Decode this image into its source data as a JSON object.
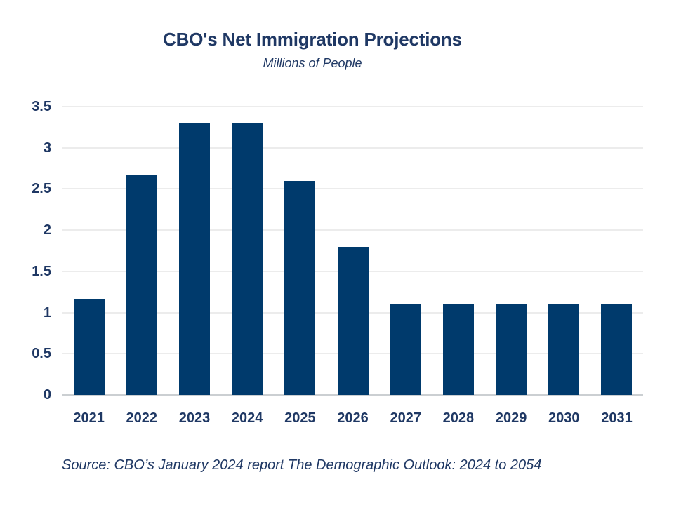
{
  "chart_data": {
    "type": "bar",
    "title": "CBO's Net Immigration Projections",
    "subtitle": "Millions of People",
    "categories": [
      "2021",
      "2022",
      "2023",
      "2024",
      "2025",
      "2026",
      "2027",
      "2028",
      "2029",
      "2030",
      "2031"
    ],
    "values": [
      1.17,
      2.67,
      3.3,
      3.3,
      2.6,
      1.8,
      1.1,
      1.1,
      1.1,
      1.1,
      1.1
    ],
    "xlabel": "",
    "ylabel": "",
    "ylim": [
      0,
      3.5
    ],
    "ytick_labels": [
      "0",
      "0.5",
      "1",
      "1.5",
      "2",
      "2.5",
      "3",
      "3.5"
    ],
    "grid": true,
    "legend": false,
    "legend_position": "none",
    "source": "Source: CBO’s January 2024 report The Demographic Outlook: 2024 to 2054",
    "colors": {
      "bar": "#003A6C",
      "text": "#1F3864",
      "gridline": "#D9D9D9",
      "baseline": "#CBCFD2",
      "background": "#FFFFFF"
    }
  }
}
